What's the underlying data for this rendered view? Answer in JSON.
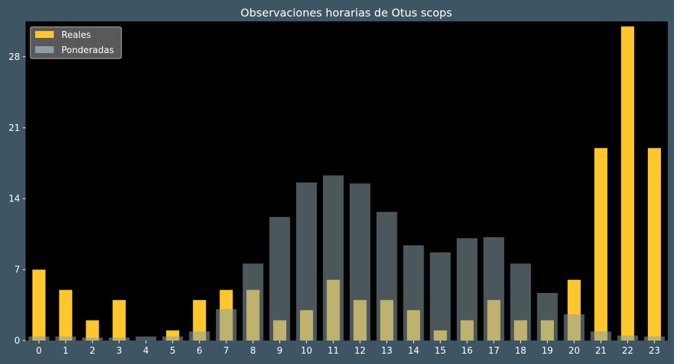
{
  "chart_data": {
    "type": "bar",
    "title": "Observaciones horarias de Otus scops",
    "xlabel": "",
    "ylabel": "",
    "categories": [
      "0",
      "1",
      "2",
      "3",
      "4",
      "5",
      "6",
      "7",
      "8",
      "9",
      "10",
      "11",
      "12",
      "13",
      "14",
      "15",
      "16",
      "17",
      "18",
      "19",
      "20",
      "21",
      "22",
      "23"
    ],
    "yticks": [
      0,
      7,
      14,
      21,
      28
    ],
    "ylim": [
      0,
      31.5
    ],
    "series": [
      {
        "name": "Reales",
        "color": "#ffc72c",
        "values": [
          7,
          5,
          2,
          4,
          0,
          1,
          4,
          5,
          5,
          2,
          3,
          6,
          4,
          4,
          3,
          1,
          2,
          4,
          2,
          2,
          6,
          19,
          31,
          19
        ]
      },
      {
        "name": "Ponderadas",
        "color": "#8a9ea6",
        "opacity": 0.55,
        "values": [
          0.4,
          0.4,
          0.3,
          0.3,
          0.4,
          0.4,
          0.9,
          3.1,
          7.6,
          12.2,
          15.6,
          16.3,
          15.5,
          12.7,
          9.4,
          8.7,
          10.1,
          10.2,
          7.6,
          4.7,
          2.6,
          0.9,
          0.5,
          0.4
        ]
      }
    ],
    "legend_position": "top-left",
    "grid": false,
    "background": "#000000",
    "figure_background": "#3e5563",
    "text_color": "#ffffff"
  }
}
